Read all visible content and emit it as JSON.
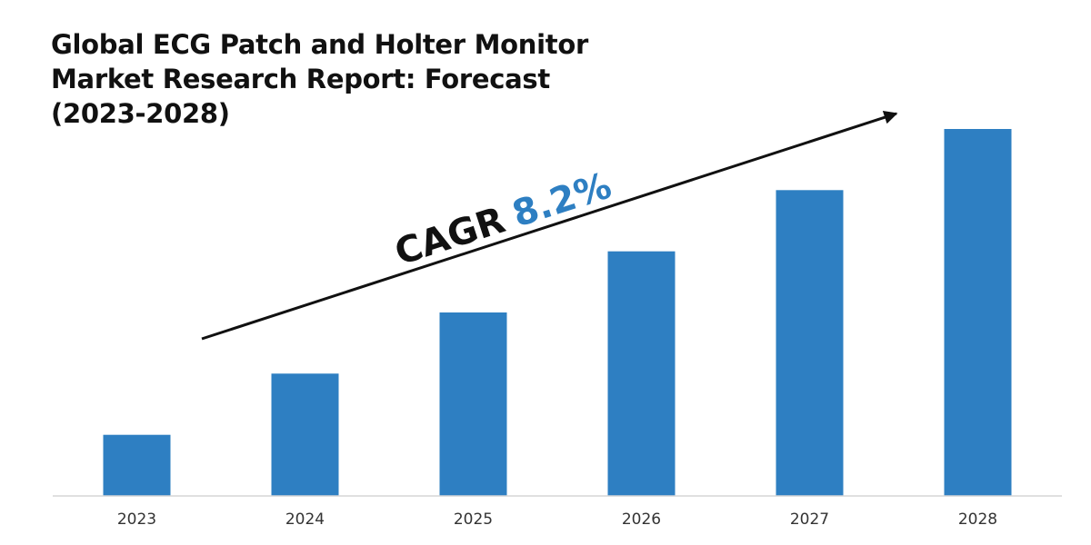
{
  "chart_data": {
    "type": "bar",
    "title": "Global ECG Patch and Holter Monitor Market Research Report: Forecast (2023-2028)",
    "categories": [
      "2023",
      "2024",
      "2025",
      "2026",
      "2027",
      "2028"
    ],
    "values": [
      1,
      2,
      3,
      4,
      5,
      6
    ],
    "ylim": [
      0,
      6
    ],
    "grid": false,
    "bar_color": "#2e7fc2",
    "annotation": {
      "label": "CAGR",
      "value": "8.2%",
      "label_color": "#111111",
      "value_color": "#2e7fc2"
    }
  }
}
